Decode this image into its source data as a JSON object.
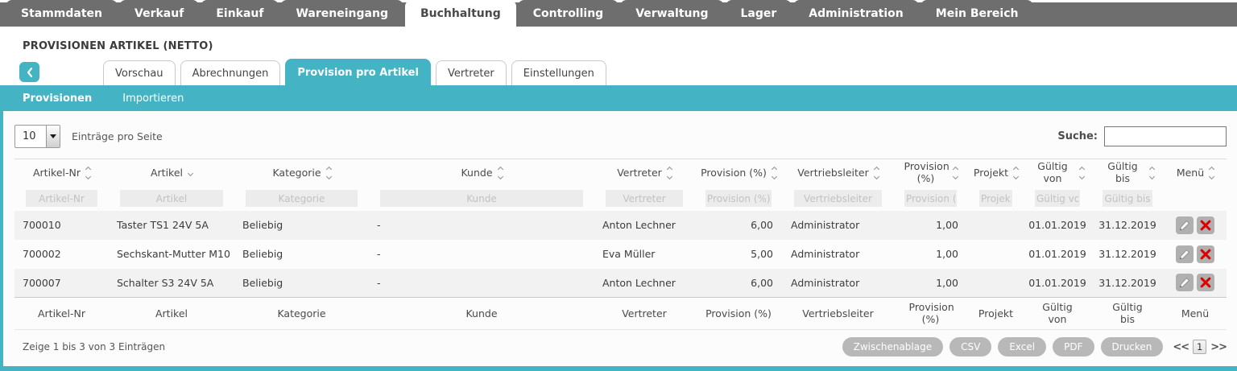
{
  "nav": {
    "items": [
      {
        "label": "Stammdaten",
        "active": false
      },
      {
        "label": "Verkauf",
        "active": false
      },
      {
        "label": "Einkauf",
        "active": false
      },
      {
        "label": "Wareneingang",
        "active": false
      },
      {
        "label": "Buchhaltung",
        "active": true
      },
      {
        "label": "Controlling",
        "active": false
      },
      {
        "label": "Verwaltung",
        "active": false
      },
      {
        "label": "Lager",
        "active": false
      },
      {
        "label": "Administration",
        "active": false
      },
      {
        "label": "Mein Bereich",
        "active": false
      }
    ]
  },
  "page": {
    "title": "PROVISIONEN ARTIKEL (NETTO)"
  },
  "tabs": [
    {
      "label": "Vorschau",
      "active": false
    },
    {
      "label": "Abrechnungen",
      "active": false
    },
    {
      "label": "Provision pro Artikel",
      "active": true
    },
    {
      "label": "Vertreter",
      "active": false
    },
    {
      "label": "Einstellungen",
      "active": false
    }
  ],
  "subnav": [
    {
      "label": "Provisionen",
      "active": true
    },
    {
      "label": "Importieren",
      "active": false
    }
  ],
  "controls": {
    "page_size_value": "10",
    "page_size_label": "Einträge pro Seite",
    "search_label": "Suche:",
    "search_value": ""
  },
  "table": {
    "columns": [
      {
        "label": "Artikel-Nr",
        "key": "artikel_nr",
        "sort": "both",
        "align": "left",
        "filter": "Artikel-Nr",
        "wrap": false
      },
      {
        "label": "Artikel",
        "key": "artikel",
        "sort": "down",
        "align": "left",
        "filter": "Artikel",
        "wrap": false
      },
      {
        "label": "Kategorie",
        "key": "kategorie",
        "sort": "both",
        "align": "left",
        "filter": "Kategorie",
        "wrap": false
      },
      {
        "label": "Kunde",
        "key": "kunde",
        "sort": "both",
        "align": "left",
        "filter": "Kunde",
        "wrap": false
      },
      {
        "label": "Vertreter",
        "key": "vertreter",
        "sort": "both",
        "align": "left",
        "filter": "Vertreter",
        "wrap": false
      },
      {
        "label": "Provision (%)",
        "key": "provision_vertreter",
        "sort": "both",
        "align": "right",
        "filter": "Provision (%)",
        "wrap": false
      },
      {
        "label": "Vertriebsleiter",
        "key": "vertriebsleiter",
        "sort": "both",
        "align": "left",
        "filter": "Vertriebsleiter",
        "wrap": false
      },
      {
        "label": "Provision (%)",
        "key": "provision_vertriebsleiter",
        "sort": "both",
        "align": "right",
        "filter": "Provision (%)",
        "wrap": true
      },
      {
        "label": "Projekt",
        "key": "projekt",
        "sort": "both",
        "align": "left",
        "filter": "Projekt",
        "wrap": false
      },
      {
        "label": "Gültig von",
        "key": "gueltig_von",
        "sort": "both",
        "align": "center",
        "filter": "Gültig von",
        "wrap": true
      },
      {
        "label": "Gültig bis",
        "key": "gueltig_bis",
        "sort": "both",
        "align": "center",
        "filter": "Gültig bis",
        "wrap": true
      },
      {
        "label": "Menü",
        "key": "menu",
        "sort": "both",
        "align": "center",
        "filter": null,
        "wrap": false
      }
    ],
    "rows": [
      {
        "artikel_nr": "700010",
        "artikel": "Taster TS1 24V 5A",
        "kategorie": "Beliebig",
        "kunde": "-",
        "vertreter": "Anton Lechner",
        "provision_vertreter": "6,00",
        "vertriebsleiter": "Administrator",
        "provision_vertriebsleiter": "1,00",
        "projekt": "",
        "gueltig_von": "01.01.2019",
        "gueltig_bis": "31.12.2019"
      },
      {
        "artikel_nr": "700002",
        "artikel": "Sechskant-Mutter M10",
        "kategorie": "Beliebig",
        "kunde": "-",
        "vertreter": "Eva Müller",
        "provision_vertreter": "5,00",
        "vertriebsleiter": "Administrator",
        "provision_vertriebsleiter": "1,00",
        "projekt": "",
        "gueltig_von": "01.01.2019",
        "gueltig_bis": "31.12.2019"
      },
      {
        "artikel_nr": "700007",
        "artikel": "Schalter S3 24V 5A",
        "kategorie": "Beliebig",
        "kunde": "-",
        "vertreter": "Anton Lechner",
        "provision_vertreter": "6,00",
        "vertriebsleiter": "Administrator",
        "provision_vertriebsleiter": "1,00",
        "projekt": "",
        "gueltig_von": "01.01.2019",
        "gueltig_bis": "31.12.2019"
      }
    ]
  },
  "footer": {
    "info": "Zeige 1 bis 3 von 3 Einträgen",
    "export_buttons": [
      "Zwischenablage",
      "CSV",
      "Excel",
      "PDF",
      "Drucken"
    ],
    "pagination": {
      "prev": "<<",
      "current_page": "1",
      "next": ">>"
    }
  },
  "colors": {
    "accent_teal": "#44b3c4",
    "nav_gray": "#6e6e6e",
    "danger_red": "#dd0000",
    "row_stripe": "#f2f2f2"
  }
}
